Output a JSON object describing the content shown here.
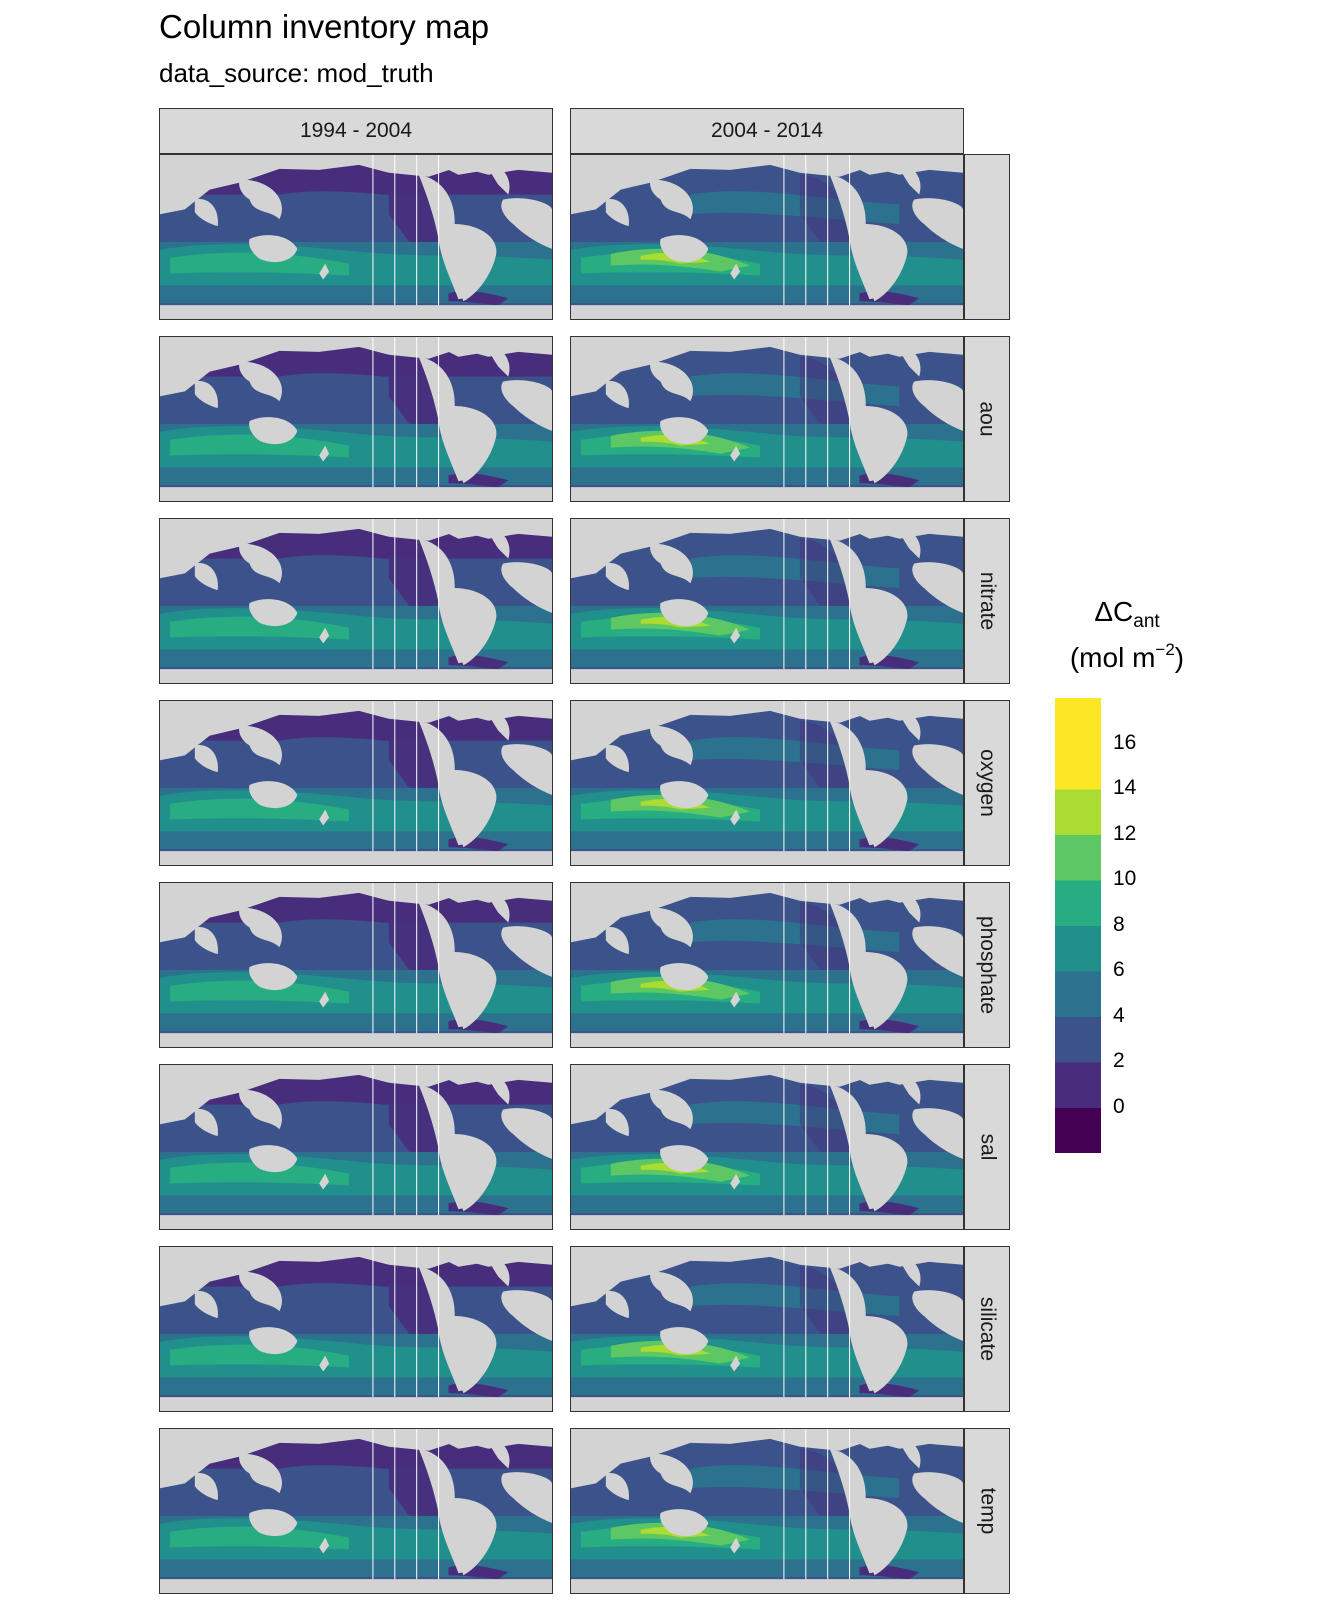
{
  "title": "Column inventory map",
  "subtitle": "data_source: mod_truth",
  "columns": [
    "1994 - 2004",
    "2004 - 2014"
  ],
  "rows": [
    "",
    "aou",
    "nitrate",
    "oxygen",
    "phosphate",
    "sal",
    "silicate",
    "temp"
  ],
  "legend": {
    "title_main": "ΔC",
    "title_sub": "ant",
    "unit_main": "(mol m",
    "unit_sup": "−2",
    "unit_close": ")",
    "ticks": [
      "16",
      "14",
      "12",
      "10",
      "8",
      "6",
      "4",
      "2",
      "0"
    ],
    "bins": [
      {
        "range": [
          -2,
          0
        ],
        "color": "#440154"
      },
      {
        "range": [
          0,
          2
        ],
        "color": "#472D7B"
      },
      {
        "range": [
          2,
          4
        ],
        "color": "#3B528B"
      },
      {
        "range": [
          4,
          6
        ],
        "color": "#2C728E"
      },
      {
        "range": [
          6,
          8
        ],
        "color": "#21908C"
      },
      {
        "range": [
          8,
          10
        ],
        "color": "#27AD81"
      },
      {
        "range": [
          10,
          12
        ],
        "color": "#5DC863"
      },
      {
        "range": [
          12,
          14
        ],
        "color": "#AADC32"
      },
      {
        "range": [
          14,
          16
        ],
        "color": "#FDE725"
      },
      {
        "range": [
          16,
          18
        ],
        "color": "#FDE725"
      }
    ]
  },
  "colors": {
    "land": "#d3d3d3",
    "strip": "#d9d9d9",
    "c0": "#472D7B",
    "c2": "#3B528B",
    "c4": "#2C728E",
    "c6": "#21908C",
    "c8": "#27AD81",
    "c10": "#5DC863",
    "c12": "#AADC32"
  }
}
